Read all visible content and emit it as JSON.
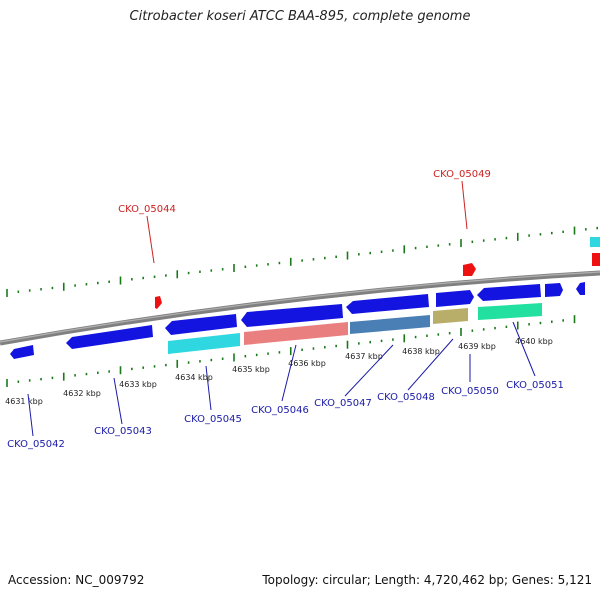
{
  "title": "Citrobacter koseri ATCC BAA-895, complete genome",
  "footer": {
    "accession": "Accession: NC_009792",
    "summary": "Topology: circular; Length: 4,720,462 bp; Genes: 5,121"
  },
  "colors": {
    "gene_blue": "#1414e0",
    "cyan": "#2fd8e0",
    "salmon": "#e97f7f",
    "steel": "#4a7fb5",
    "olive": "#b8ae6a",
    "teal_green": "#22e0a0",
    "red": "#ee1111",
    "tick_green": "#1a7a1a",
    "backbone": "#808080"
  },
  "kbp_ticks": [
    "4631 kbp",
    "4632 kbp",
    "4633 kbp",
    "4634 kbp",
    "4635 kbp",
    "4636 kbp",
    "4637 kbp",
    "4638 kbp",
    "4639 kbp",
    "4640 kbp"
  ],
  "gene_labels": {
    "top": [
      "CKO_05044",
      "CKO_05049"
    ],
    "bottom": [
      "CKO_05042",
      "CKO_05043",
      "CKO_05045",
      "CKO_05046",
      "CKO_05047",
      "CKO_05048",
      "CKO_05050",
      "CKO_05051"
    ]
  }
}
